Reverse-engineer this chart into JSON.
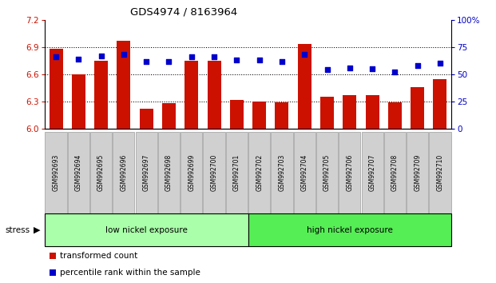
{
  "title": "GDS4974 / 8163964",
  "samples": [
    "GSM992693",
    "GSM992694",
    "GSM992695",
    "GSM992696",
    "GSM992697",
    "GSM992698",
    "GSM992699",
    "GSM992700",
    "GSM992701",
    "GSM992702",
    "GSM992703",
    "GSM992704",
    "GSM992705",
    "GSM992706",
    "GSM992707",
    "GSM992708",
    "GSM992709",
    "GSM992710"
  ],
  "transformed_count": [
    6.88,
    6.6,
    6.75,
    6.97,
    6.22,
    6.28,
    6.75,
    6.75,
    6.32,
    6.3,
    6.29,
    6.93,
    6.35,
    6.37,
    6.37,
    6.29,
    6.46,
    6.55
  ],
  "percentile_rank": [
    66,
    64,
    67,
    68,
    62,
    62,
    66,
    66,
    63,
    63,
    62,
    68,
    54,
    56,
    55,
    52,
    58,
    60
  ],
  "left_ylim": [
    6.0,
    7.2
  ],
  "right_ylim": [
    0,
    100
  ],
  "left_yticks": [
    6.0,
    6.3,
    6.6,
    6.9,
    7.2
  ],
  "right_yticks": [
    0,
    25,
    50,
    75,
    100
  ],
  "bar_color": "#cc1100",
  "scatter_color": "#0000cc",
  "low_nickel_label": "low nickel exposure",
  "high_nickel_label": "high nickel exposure",
  "low_nickel_color": "#aaffaa",
  "high_nickel_color": "#55ee55",
  "stress_label": "stress",
  "legend_bar_label": "transformed count",
  "legend_scatter_label": "percentile rank within the sample",
  "dotted_line_y": [
    6.3,
    6.6,
    6.9
  ],
  "low_count": 9,
  "high_count": 9,
  "bar_width": 0.6
}
